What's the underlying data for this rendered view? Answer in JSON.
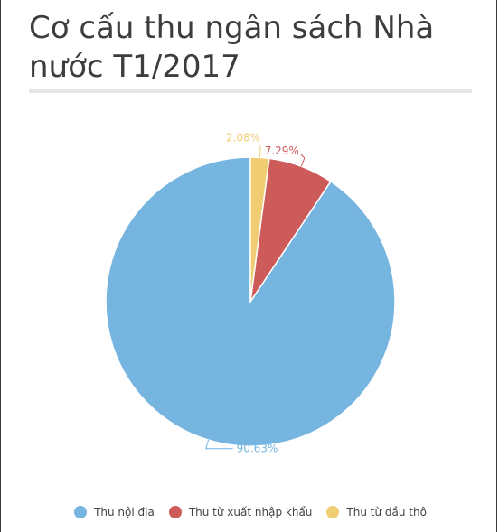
{
  "title": "Cơ cấu thu ngân sách Nhà nước T1/2017",
  "chart_data": {
    "type": "pie",
    "start_angle_deg": 0,
    "direction": "counterclockwise",
    "slices": [
      {
        "name": "Thu nội địa",
        "value": 90.63,
        "label": "90.63%",
        "color": "#76b5e0"
      },
      {
        "name": "Thu từ xuất nhập khẩu",
        "value": 7.29,
        "label": "7.29%",
        "color": "#cd5b59"
      },
      {
        "name": "Thu từ dầu thô",
        "value": 2.08,
        "label": "2.08%",
        "color": "#f0cd73"
      }
    ],
    "legend_position": "bottom-center"
  }
}
